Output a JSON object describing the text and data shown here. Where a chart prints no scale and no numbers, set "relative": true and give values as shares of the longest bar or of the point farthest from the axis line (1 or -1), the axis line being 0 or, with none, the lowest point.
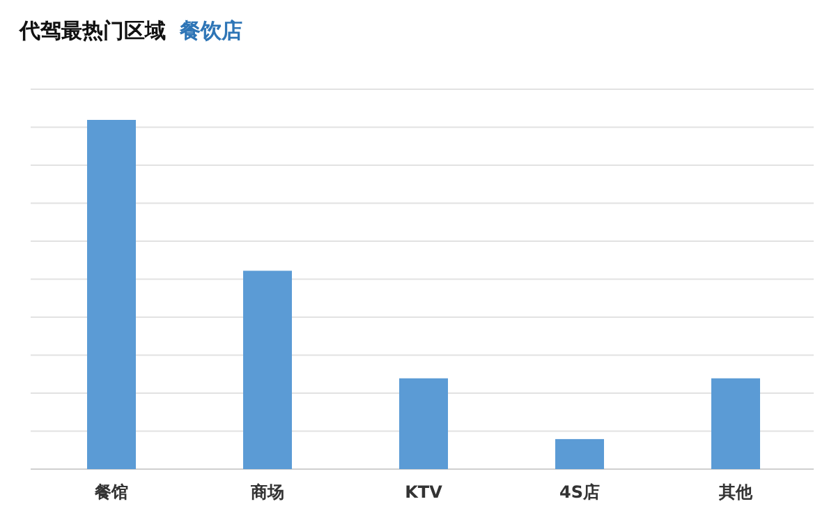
{
  "chart_data": {
    "type": "bar",
    "title": "代驾最热门区域",
    "subtitle": "餐饮店",
    "categories": [
      "餐馆",
      "商场",
      "KTV",
      "4S店",
      "其他"
    ],
    "values": [
      1,
      0.568,
      0.26,
      0.086,
      0.26
    ],
    "color": "#5b9bd5",
    "relative": true,
    "grid": "y"
  }
}
